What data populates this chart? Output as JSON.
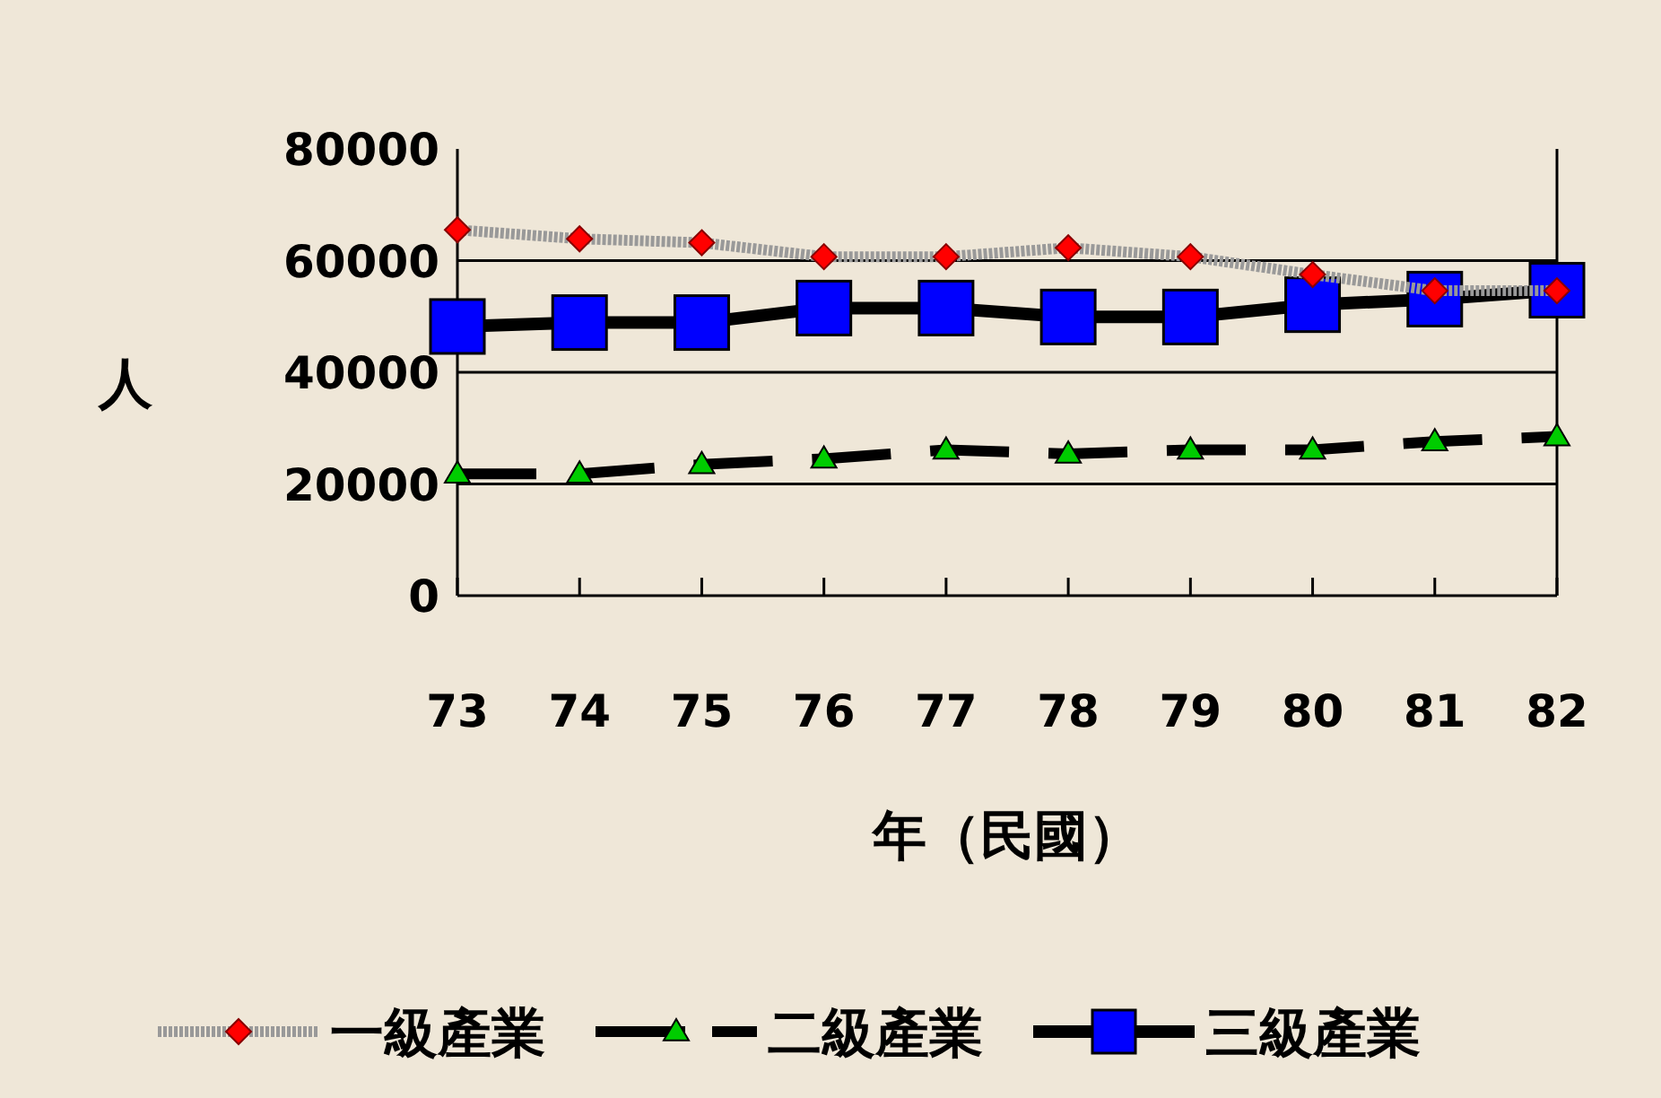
{
  "chart_data": {
    "type": "line",
    "xlabel": "年（民國）",
    "ylabel": "人",
    "categories": [
      "73",
      "74",
      "75",
      "76",
      "77",
      "78",
      "79",
      "80",
      "81",
      "82"
    ],
    "series": [
      {
        "name": "一級產業",
        "color": "#ff0000",
        "marker": "diamond",
        "line_style": "dotted",
        "values": [
          65500,
          63900,
          63200,
          60700,
          60700,
          62300,
          60700,
          57500,
          54600,
          54600
        ]
      },
      {
        "name": "二級產業",
        "color": "#00cc00",
        "marker": "triangle",
        "line_style": "dashed",
        "values": [
          21800,
          21800,
          23500,
          24500,
          26100,
          25400,
          26100,
          26100,
          27600,
          28500
        ]
      },
      {
        "name": "三級產業",
        "color": "#0000ff",
        "marker": "square",
        "line_style": "solid",
        "values": [
          48200,
          48900,
          48900,
          51500,
          51500,
          49900,
          49900,
          52100,
          53100,
          54700
        ]
      }
    ],
    "ylim": [
      0,
      80000
    ],
    "yticks": [
      0,
      20000,
      40000,
      60000,
      80000
    ],
    "grid": "y",
    "legend": "bottom"
  }
}
